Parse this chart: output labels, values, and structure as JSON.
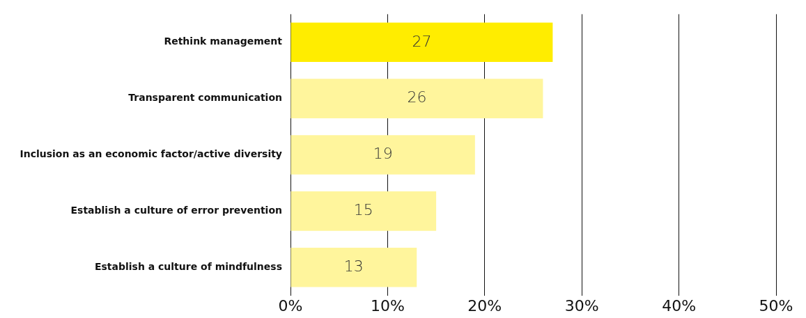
{
  "chart_data": {
    "type": "bar",
    "orientation": "horizontal",
    "categories": [
      "Rethink management",
      "Transparent communication",
      "Inclusion as an economic factor/active diversity",
      "Establish a culture of error prevention",
      "Establish a culture of mindfulness"
    ],
    "values": [
      27,
      26,
      19,
      15,
      13
    ],
    "colors": [
      "#ffed00",
      "#fff59c",
      "#fff59c",
      "#fff59c",
      "#fff59c"
    ],
    "xlim": [
      0,
      50
    ],
    "xticks": [
      {
        "value": 0,
        "label": "0%"
      },
      {
        "value": 10,
        "label": "10%"
      },
      {
        "value": 20,
        "label": "20%"
      },
      {
        "value": 30,
        "label": "30%"
      },
      {
        "value": 40,
        "label": "40%"
      },
      {
        "value": 50,
        "label": "50%"
      }
    ],
    "grid": "x",
    "data_labels": true,
    "legend": false
  }
}
